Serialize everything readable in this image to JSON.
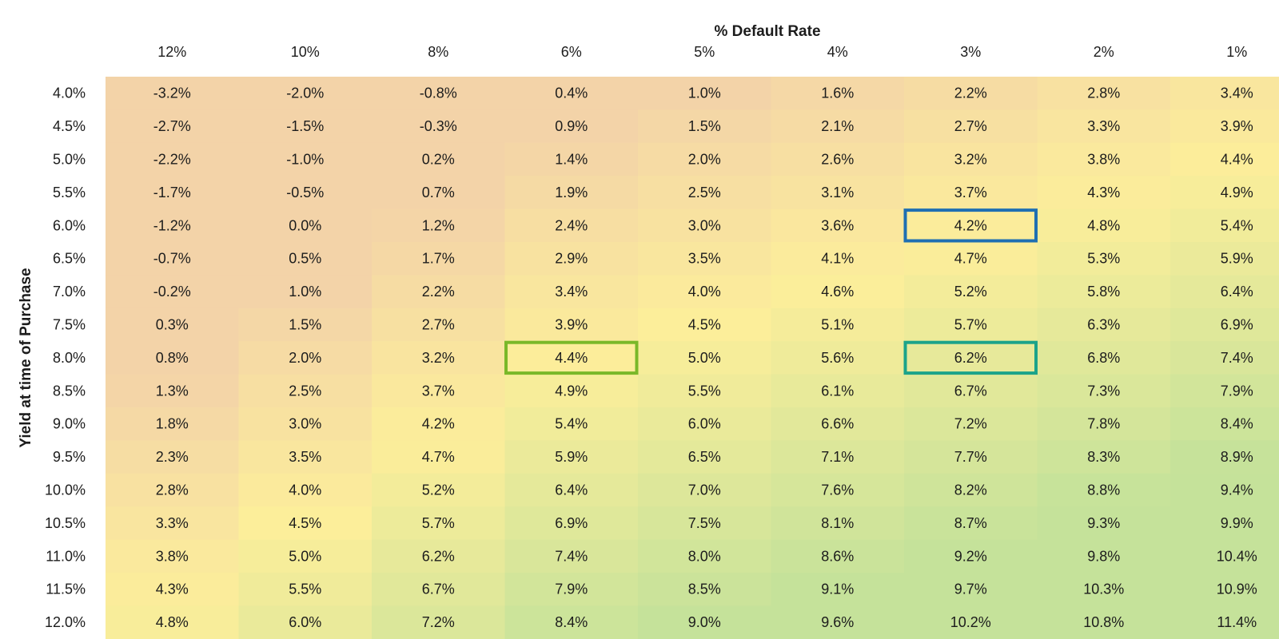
{
  "chart_data": {
    "type": "heatmap",
    "xlabel": "% Default Rate",
    "ylabel": "Yield at time of Purchase",
    "x_categories": [
      "12%",
      "10%",
      "8%",
      "6%",
      "5%",
      "4%",
      "3%",
      "2%",
      "1%"
    ],
    "y_categories": [
      "4.0%",
      "4.5%",
      "5.0%",
      "5.5%",
      "6.0%",
      "6.5%",
      "7.0%",
      "7.5%",
      "8.0%",
      "8.5%",
      "9.0%",
      "9.5%",
      "10.0%",
      "10.5%",
      "11.0%",
      "11.5%",
      "12.0%"
    ],
    "values": [
      [
        -3.2,
        -2.0,
        -0.8,
        0.4,
        1.0,
        1.6,
        2.2,
        2.8,
        3.4
      ],
      [
        -2.7,
        -1.5,
        -0.3,
        0.9,
        1.5,
        2.1,
        2.7,
        3.3,
        3.9
      ],
      [
        -2.2,
        -1.0,
        0.2,
        1.4,
        2.0,
        2.6,
        3.2,
        3.8,
        4.4
      ],
      [
        -1.7,
        -0.5,
        0.7,
        1.9,
        2.5,
        3.1,
        3.7,
        4.3,
        4.9
      ],
      [
        -1.2,
        0.0,
        1.2,
        2.4,
        3.0,
        3.6,
        4.2,
        4.8,
        5.4
      ],
      [
        -0.7,
        0.5,
        1.7,
        2.9,
        3.5,
        4.1,
        4.7,
        5.3,
        5.9
      ],
      [
        -0.2,
        1.0,
        2.2,
        3.4,
        4.0,
        4.6,
        5.2,
        5.8,
        6.4
      ],
      [
        0.3,
        1.5,
        2.7,
        3.9,
        4.5,
        5.1,
        5.7,
        6.3,
        6.9
      ],
      [
        0.8,
        2.0,
        3.2,
        4.4,
        5.0,
        5.6,
        6.2,
        6.8,
        7.4
      ],
      [
        1.3,
        2.5,
        3.7,
        4.9,
        5.5,
        6.1,
        6.7,
        7.3,
        7.9
      ],
      [
        1.8,
        3.0,
        4.2,
        5.4,
        6.0,
        6.6,
        7.2,
        7.8,
        8.4
      ],
      [
        2.3,
        3.5,
        4.7,
        5.9,
        6.5,
        7.1,
        7.7,
        8.3,
        8.9
      ],
      [
        2.8,
        4.0,
        5.2,
        6.4,
        7.0,
        7.6,
        8.2,
        8.8,
        9.4
      ],
      [
        3.3,
        4.5,
        5.7,
        6.9,
        7.5,
        8.1,
        8.7,
        9.3,
        9.9
      ],
      [
        3.8,
        5.0,
        6.2,
        7.4,
        8.0,
        8.6,
        9.2,
        9.8,
        10.4
      ],
      [
        4.3,
        5.5,
        6.7,
        7.9,
        8.5,
        9.1,
        9.7,
        10.3,
        10.9
      ],
      [
        4.8,
        6.0,
        7.2,
        8.4,
        9.0,
        9.6,
        10.2,
        10.8,
        11.4
      ]
    ],
    "cell_labels": [
      [
        "-3.2%",
        "-2.0%",
        "-0.8%",
        "0.4%",
        "1.0%",
        "1.6%",
        "2.2%",
        "2.8%",
        "3.4%"
      ],
      [
        "-2.7%",
        "-1.5%",
        "-0.3%",
        "0.9%",
        "1.5%",
        "2.1%",
        "2.7%",
        "3.3%",
        "3.9%"
      ],
      [
        "-2.2%",
        "-1.0%",
        "0.2%",
        "1.4%",
        "2.0%",
        "2.6%",
        "3.2%",
        "3.8%",
        "4.4%"
      ],
      [
        "-1.7%",
        "-0.5%",
        "0.7%",
        "1.9%",
        "2.5%",
        "3.1%",
        "3.7%",
        "4.3%",
        "4.9%"
      ],
      [
        "-1.2%",
        "0.0%",
        "1.2%",
        "2.4%",
        "3.0%",
        "3.6%",
        "4.2%",
        "4.8%",
        "5.4%"
      ],
      [
        "-0.7%",
        "0.5%",
        "1.7%",
        "2.9%",
        "3.5%",
        "4.1%",
        "4.7%",
        "5.3%",
        "5.9%"
      ],
      [
        "-0.2%",
        "1.0%",
        "2.2%",
        "3.4%",
        "4.0%",
        "4.6%",
        "5.2%",
        "5.8%",
        "6.4%"
      ],
      [
        "0.3%",
        "1.5%",
        "2.7%",
        "3.9%",
        "4.5%",
        "5.1%",
        "5.7%",
        "6.3%",
        "6.9%"
      ],
      [
        "0.8%",
        "2.0%",
        "3.2%",
        "4.4%",
        "5.0%",
        "5.6%",
        "6.2%",
        "6.8%",
        "7.4%"
      ],
      [
        "1.3%",
        "2.5%",
        "3.7%",
        "4.9%",
        "5.5%",
        "6.1%",
        "6.7%",
        "7.3%",
        "7.9%"
      ],
      [
        "1.8%",
        "3.0%",
        "4.2%",
        "5.4%",
        "6.0%",
        "6.6%",
        "7.2%",
        "7.8%",
        "8.4%"
      ],
      [
        "2.3%",
        "3.5%",
        "4.7%",
        "5.9%",
        "6.5%",
        "7.1%",
        "7.7%",
        "8.3%",
        "8.9%"
      ],
      [
        "2.8%",
        "4.0%",
        "5.2%",
        "6.4%",
        "7.0%",
        "7.6%",
        "8.2%",
        "8.8%",
        "9.4%"
      ],
      [
        "3.3%",
        "4.5%",
        "5.7%",
        "6.9%",
        "7.5%",
        "8.1%",
        "8.7%",
        "9.3%",
        "9.9%"
      ],
      [
        "3.8%",
        "5.0%",
        "6.2%",
        "7.4%",
        "8.0%",
        "8.6%",
        "9.2%",
        "9.8%",
        "10.4%"
      ],
      [
        "4.3%",
        "5.5%",
        "6.7%",
        "7.9%",
        "8.5%",
        "9.1%",
        "9.7%",
        "10.3%",
        "10.9%"
      ],
      [
        "4.8%",
        "6.0%",
        "7.2%",
        "8.4%",
        "9.0%",
        "9.6%",
        "10.2%",
        "10.8%",
        "11.4%"
      ]
    ],
    "color_scale": {
      "low": "#f3d3a8",
      "mid": "#fcee9a",
      "high": "#c5e29a",
      "low_value": 1.0,
      "mid_value": 4.5,
      "high_value": 9.0
    },
    "highlights": [
      {
        "row": "6.0%",
        "col": "3%",
        "color": "#1f6fb2"
      },
      {
        "row": "8.0%",
        "col": "6%",
        "color": "#7ab829"
      },
      {
        "row": "8.0%",
        "col": "3%",
        "color": "#1ca38a"
      }
    ],
    "legend": "none",
    "grid": false
  }
}
